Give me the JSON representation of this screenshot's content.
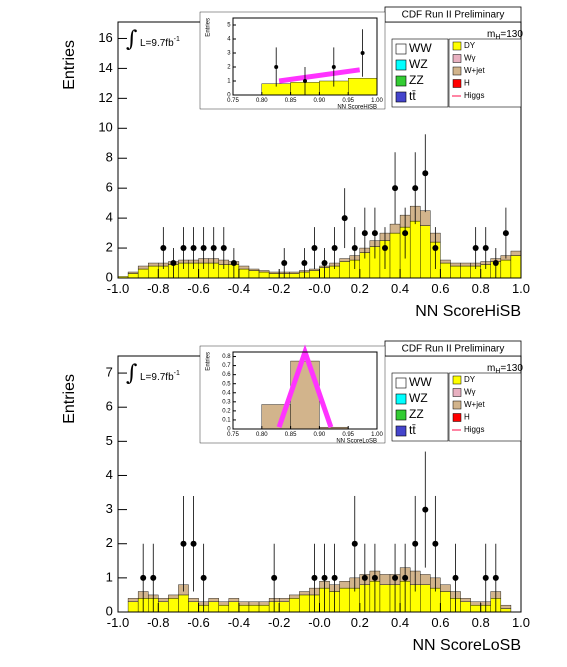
{
  "chart_data": [
    {
      "type": "histogram",
      "title": "CDF Run II Preliminary",
      "xlabel": "NN ScoreHiSB",
      "ylabel": "Entries",
      "lumi": "L=9.7fb",
      "lumi_power": "-1",
      "mass_label": {
        "symbol": "m",
        "subscript": "H",
        "text": "=130"
      },
      "xlim": [
        -1,
        1
      ],
      "ylim": [
        0,
        17.1
      ],
      "xticks": [
        {
          "value": -1,
          "label": "-1.0"
        },
        -0.8,
        -0.6,
        -0.4,
        -0.2,
        {
          "value": 0,
          "label": "-0.0"
        },
        0.2,
        0.4,
        0.6,
        0.8,
        {
          "value": 1,
          "label": "1.0"
        }
      ],
      "yticks": [
        0,
        2,
        4,
        6,
        8,
        10,
        12,
        14,
        16
      ],
      "bins": [
        -1,
        -0.95,
        -0.9,
        -0.85,
        -0.8,
        -0.75,
        -0.7,
        -0.65,
        -0.6,
        -0.55,
        -0.5,
        -0.45,
        -0.4,
        -0.35,
        -0.3,
        -0.25,
        -0.2,
        -0.15,
        -0.1,
        -0.05,
        0,
        0.05,
        0.1,
        0.15,
        0.2,
        0.25,
        0.3,
        0.35,
        0.4,
        0.45,
        0.5,
        0.55,
        0.6,
        0.65,
        0.7,
        0.75,
        0.8,
        0.85,
        0.9,
        0.95,
        1
      ],
      "series": [
        {
          "name": "DY",
          "color": "#ffff00",
          "values": [
            0.1,
            0.3,
            0.6,
            0.8,
            0.8,
            0.9,
            1.0,
            1.0,
            1.0,
            1.0,
            0.9,
            0.9,
            0.6,
            0.5,
            0.4,
            0.3,
            0.3,
            0.3,
            0.4,
            0.5,
            0.7,
            0.8,
            1.1,
            1.2,
            1.7,
            2.1,
            2.5,
            3.0,
            3.4,
            3.8,
            3.5,
            2.4,
            1.0,
            0.8,
            0.8,
            0.8,
            0.9,
            1.1,
            1.2,
            1.5
          ]
        },
        {
          "name": "W+jet",
          "color": "#d2b48c",
          "values": [
            0,
            0.1,
            0.2,
            0.2,
            0.2,
            0.2,
            0.2,
            0.2,
            0.3,
            0.3,
            0.3,
            0.2,
            0.2,
            0.1,
            0.1,
            0.1,
            0.1,
            0.1,
            0.1,
            0.1,
            0.1,
            0.2,
            0.2,
            0.3,
            0.3,
            0.4,
            0.5,
            0.6,
            0.8,
            1.0,
            1.0,
            0.6,
            0.2,
            0.2,
            0.2,
            0.2,
            0.2,
            0.2,
            0.3,
            0.3
          ]
        }
      ],
      "other_legend_entries": [
        {
          "name": "WW",
          "color": "#ffffff"
        },
        {
          "name": "WZ",
          "color": "#00ffff"
        },
        {
          "name": "ZZ",
          "color": "#33cc33"
        },
        {
          "name": "tt̄",
          "color": "#4444cc"
        },
        {
          "name": "Wγ",
          "color": "#e8b0c0"
        },
        {
          "name": "H",
          "color": "#ff0000"
        },
        {
          "name": "Higgs",
          "color": "#ff3366",
          "marker": "line"
        }
      ],
      "data": {
        "color": "#000000",
        "x": [
          -0.775,
          -0.725,
          -0.675,
          -0.625,
          -0.575,
          -0.525,
          -0.475,
          -0.425,
          -0.175,
          -0.075,
          -0.025,
          0.025,
          0.075,
          0.125,
          0.175,
          0.225,
          0.275,
          0.325,
          0.375,
          0.425,
          0.475,
          0.525,
          0.575,
          0.775,
          0.825,
          0.875,
          0.925
        ],
        "values": [
          2,
          1,
          2,
          2,
          2,
          2,
          2,
          1,
          1,
          1,
          2,
          1,
          2,
          4,
          2,
          3,
          3,
          2,
          6,
          3,
          6,
          7,
          2,
          2,
          2,
          1,
          3
        ],
        "errors": [
          1.4,
          1,
          1.4,
          1.4,
          1.4,
          1.4,
          1.4,
          1,
          1,
          1,
          1.4,
          1,
          1.4,
          2,
          1.4,
          1.7,
          1.7,
          1.4,
          2.4,
          1.7,
          2.4,
          2.6,
          1.4,
          1.4,
          1.4,
          1,
          1.7
        ]
      },
      "inset": {
        "xlabel": "NN ScoreHiSB",
        "ylabel": "Entries",
        "xlim": [
          0.75,
          1
        ],
        "ylim": [
          0,
          5.5
        ],
        "xticks": [
          0.75,
          {
            "value": 0.8,
            "label": "0.80"
          },
          0.85,
          {
            "value": 0.9,
            "label": "0.90"
          },
          0.95,
          {
            "value": 1,
            "label": "1.00"
          }
        ],
        "yticks": [
          0,
          1,
          2,
          3,
          4,
          5
        ],
        "bins": [
          0.75,
          0.8,
          0.85,
          0.9,
          0.95,
          1
        ],
        "values": [
          0,
          0.8,
          0.9,
          1.0,
          1.2
        ],
        "color": "#ffff00",
        "signal": {
          "color": "#ff33ff",
          "x": [
            0.83,
            0.97
          ],
          "values": [
            1.0,
            1.8
          ]
        },
        "data": {
          "color": "#000000",
          "x": [
            0.825,
            0.875,
            0.925,
            0.975
          ],
          "values": [
            2,
            1,
            2,
            3
          ],
          "errors": [
            1.4,
            1,
            1.4,
            1.7
          ]
        }
      }
    },
    {
      "type": "histogram",
      "title": "CDF Run II Preliminary",
      "xlabel": "NN ScoreLoSB",
      "ylabel": "Entries",
      "lumi": "L=9.7fb",
      "lumi_power": "-1",
      "mass_label": {
        "symbol": "m",
        "subscript": "H",
        "text": "=130"
      },
      "xlim": [
        -1,
        1
      ],
      "ylim": [
        0,
        7.5
      ],
      "xticks": [
        {
          "value": -1,
          "label": "-1.0"
        },
        -0.8,
        -0.6,
        -0.4,
        -0.2,
        {
          "value": 0,
          "label": "-0.0"
        },
        0.2,
        0.4,
        0.6,
        0.8,
        {
          "value": 1,
          "label": "1.0"
        }
      ],
      "yticks": [
        0,
        1,
        2,
        3,
        4,
        5,
        6,
        7
      ],
      "bins": [
        -1,
        -0.95,
        -0.9,
        -0.85,
        -0.8,
        -0.75,
        -0.7,
        -0.65,
        -0.6,
        -0.55,
        -0.5,
        -0.45,
        -0.4,
        -0.35,
        -0.3,
        -0.25,
        -0.2,
        -0.15,
        -0.1,
        -0.05,
        0,
        0.05,
        0.1,
        0.15,
        0.2,
        0.25,
        0.3,
        0.35,
        0.4,
        0.45,
        0.5,
        0.55,
        0.6,
        0.65,
        0.7,
        0.75,
        0.8,
        0.85,
        0.9,
        0.95,
        1
      ],
      "series": [
        {
          "name": "DY",
          "color": "#ffff00",
          "values": [
            0,
            0.3,
            0.4,
            0.4,
            0.3,
            0.4,
            0.5,
            0.3,
            0.2,
            0.3,
            0.2,
            0.3,
            0.2,
            0.2,
            0.2,
            0.3,
            0.3,
            0.4,
            0.5,
            0.5,
            0.7,
            0.6,
            0.7,
            0.7,
            0.8,
            0.9,
            0.8,
            0.8,
            0.9,
            0.8,
            0.8,
            0.7,
            0.6,
            0.4,
            0.3,
            0.2,
            0.2,
            0.4,
            0.1,
            0
          ]
        },
        {
          "name": "W+jet",
          "color": "#d2b48c",
          "values": [
            0,
            0.1,
            0.2,
            0.1,
            0.1,
            0.1,
            0.3,
            0.1,
            0.1,
            0.1,
            0.1,
            0.1,
            0.1,
            0.1,
            0.1,
            0.1,
            0.1,
            0.1,
            0.1,
            0.2,
            0.2,
            0.2,
            0.2,
            0.3,
            0.3,
            0.3,
            0.3,
            0.3,
            0.4,
            0.4,
            0.3,
            0.3,
            0.2,
            0.2,
            0.1,
            0.1,
            0.1,
            0.2,
            0.1,
            0
          ]
        }
      ],
      "other_legend_entries": [
        {
          "name": "WW",
          "color": "#ffffff"
        },
        {
          "name": "WZ",
          "color": "#00ffff"
        },
        {
          "name": "ZZ",
          "color": "#33cc33"
        },
        {
          "name": "tt̄",
          "color": "#4444cc"
        },
        {
          "name": "Wγ",
          "color": "#e8b0c0"
        },
        {
          "name": "H",
          "color": "#ff0000"
        },
        {
          "name": "Higgs",
          "color": "#ff3366",
          "marker": "line"
        }
      ],
      "data": {
        "color": "#000000",
        "x": [
          -0.875,
          -0.825,
          -0.675,
          -0.625,
          -0.575,
          -0.225,
          -0.025,
          0.025,
          0.075,
          0.175,
          0.225,
          0.275,
          0.375,
          0.425,
          0.475,
          0.525,
          0.575,
          0.675,
          0.825,
          0.875
        ],
        "values": [
          1,
          1,
          2,
          2,
          1,
          1,
          1,
          1,
          1,
          2,
          1,
          1,
          1,
          1,
          2,
          3,
          2,
          1,
          1,
          1
        ],
        "errors": [
          1,
          1,
          1.4,
          1.4,
          1,
          1,
          1,
          1,
          1,
          1.4,
          1,
          1,
          1,
          1,
          1.4,
          1.7,
          1.4,
          1,
          1,
          1
        ]
      },
      "inset": {
        "xlabel": "NN ScoreLoSB",
        "ylabel": "Entries",
        "xlim": [
          0.75,
          1
        ],
        "ylim": [
          0,
          0.85
        ],
        "xticks": [
          0.75,
          {
            "value": 0.8,
            "label": "0.80"
          },
          0.85,
          {
            "value": 0.9,
            "label": "0.90"
          },
          0.95,
          {
            "value": 1,
            "label": "1.00"
          }
        ],
        "yticks": [
          0,
          0.1,
          0.2,
          0.3,
          0.4,
          0.5,
          0.6,
          0.7,
          0.8
        ],
        "bins": [
          0.75,
          0.8,
          0.85,
          0.9,
          0.95,
          1
        ],
        "values": [
          0,
          0.27,
          0.75,
          0.02,
          0
        ],
        "color": "#d2b48c",
        "signal": {
          "color": "#ff33ff",
          "x": [
            0.83,
            0.875,
            0.92
          ],
          "values": [
            0.02,
            0.85,
            0.02
          ]
        }
      }
    }
  ]
}
